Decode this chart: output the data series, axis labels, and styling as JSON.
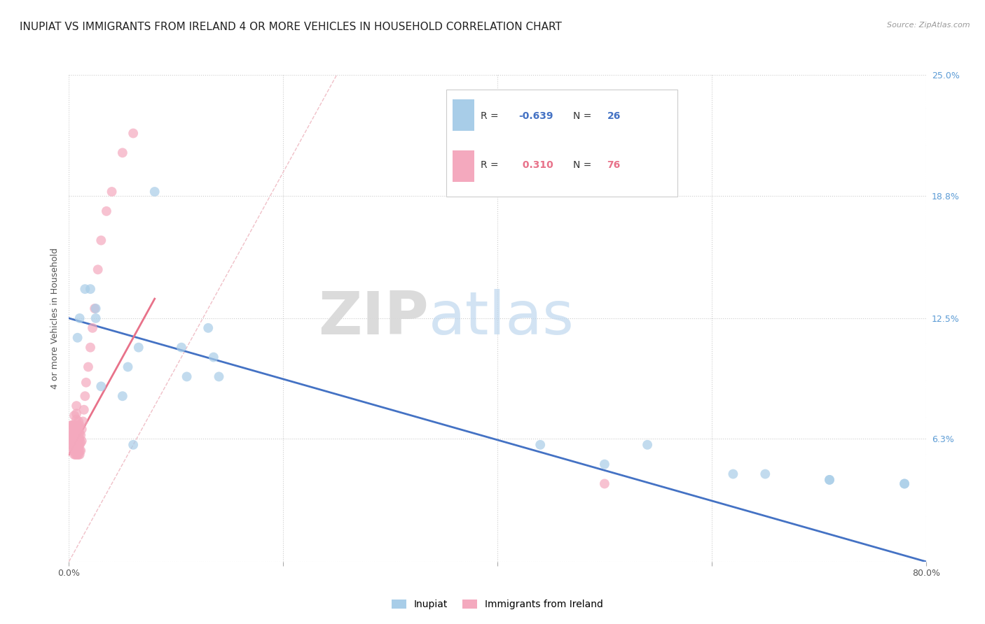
{
  "title": "INUPIAT VS IMMIGRANTS FROM IRELAND 4 OR MORE VEHICLES IN HOUSEHOLD CORRELATION CHART",
  "source": "Source: ZipAtlas.com",
  "ylabel": "4 or more Vehicles in Household",
  "xlim": [
    0.0,
    0.8
  ],
  "ylim": [
    0.0,
    0.25
  ],
  "xtick_positions": [
    0.0,
    0.2,
    0.4,
    0.6,
    0.8
  ],
  "xticklabels": [
    "0.0%",
    "",
    "",
    "",
    "80.0%"
  ],
  "ytick_positions": [
    0.0,
    0.063,
    0.125,
    0.188,
    0.25
  ],
  "yticklabels": [
    "",
    "6.3%",
    "12.5%",
    "18.8%",
    "25.0%"
  ],
  "watermark": "ZIPatlas",
  "color_blue": "#a8cde8",
  "color_pink": "#f4a9be",
  "color_blue_line": "#4472c4",
  "color_pink_line": "#e8728a",
  "color_diag": "#f0c0c8",
  "inupiat_x": [
    0.008,
    0.01,
    0.015,
    0.02,
    0.025,
    0.025,
    0.03,
    0.05,
    0.055,
    0.06,
    0.065,
    0.08,
    0.105,
    0.11,
    0.13,
    0.135,
    0.14,
    0.44,
    0.5,
    0.54,
    0.62,
    0.65,
    0.71,
    0.71,
    0.78,
    0.78
  ],
  "inupiat_y": [
    0.115,
    0.125,
    0.14,
    0.14,
    0.125,
    0.13,
    0.09,
    0.085,
    0.1,
    0.06,
    0.11,
    0.19,
    0.11,
    0.095,
    0.12,
    0.105,
    0.095,
    0.06,
    0.05,
    0.06,
    0.045,
    0.045,
    0.042,
    0.042,
    0.04,
    0.04
  ],
  "ireland_x": [
    0.001,
    0.001,
    0.002,
    0.002,
    0.002,
    0.003,
    0.003,
    0.003,
    0.003,
    0.003,
    0.004,
    0.004,
    0.004,
    0.004,
    0.005,
    0.005,
    0.005,
    0.005,
    0.005,
    0.005,
    0.006,
    0.006,
    0.006,
    0.006,
    0.006,
    0.006,
    0.007,
    0.007,
    0.007,
    0.007,
    0.007,
    0.007,
    0.007,
    0.007,
    0.007,
    0.007,
    0.007,
    0.008,
    0.008,
    0.008,
    0.008,
    0.008,
    0.009,
    0.009,
    0.009,
    0.009,
    0.009,
    0.009,
    0.009,
    0.009,
    0.01,
    0.01,
    0.01,
    0.01,
    0.01,
    0.01,
    0.011,
    0.011,
    0.011,
    0.012,
    0.012,
    0.013,
    0.014,
    0.015,
    0.016,
    0.018,
    0.02,
    0.022,
    0.024,
    0.027,
    0.03,
    0.035,
    0.04,
    0.05,
    0.06,
    0.5
  ],
  "ireland_y": [
    0.062,
    0.068,
    0.06,
    0.064,
    0.07,
    0.057,
    0.06,
    0.063,
    0.066,
    0.07,
    0.058,
    0.062,
    0.066,
    0.07,
    0.055,
    0.058,
    0.062,
    0.066,
    0.07,
    0.075,
    0.055,
    0.058,
    0.06,
    0.063,
    0.066,
    0.07,
    0.055,
    0.057,
    0.059,
    0.061,
    0.063,
    0.065,
    0.067,
    0.07,
    0.073,
    0.076,
    0.08,
    0.055,
    0.058,
    0.062,
    0.066,
    0.07,
    0.055,
    0.057,
    0.059,
    0.061,
    0.063,
    0.066,
    0.069,
    0.072,
    0.055,
    0.057,
    0.06,
    0.063,
    0.066,
    0.07,
    0.057,
    0.061,
    0.065,
    0.062,
    0.068,
    0.072,
    0.078,
    0.085,
    0.092,
    0.1,
    0.11,
    0.12,
    0.13,
    0.15,
    0.165,
    0.18,
    0.19,
    0.21,
    0.22,
    0.04
  ],
  "blue_line_x": [
    0.0,
    0.8
  ],
  "blue_line_y": [
    0.125,
    0.0
  ],
  "pink_line_x": [
    0.0,
    0.08
  ],
  "pink_line_y": [
    0.055,
    0.135
  ],
  "diag_line_x": [
    0.0,
    0.25
  ],
  "diag_line_y": [
    0.0,
    0.25
  ],
  "legend_labels": [
    "Inupiat",
    "Immigrants from Ireland"
  ],
  "legend_r1": "-0.639",
  "legend_n1": "26",
  "legend_r2": "0.310",
  "legend_n2": "76",
  "title_fontsize": 11,
  "axis_label_fontsize": 9,
  "tick_fontsize": 9
}
